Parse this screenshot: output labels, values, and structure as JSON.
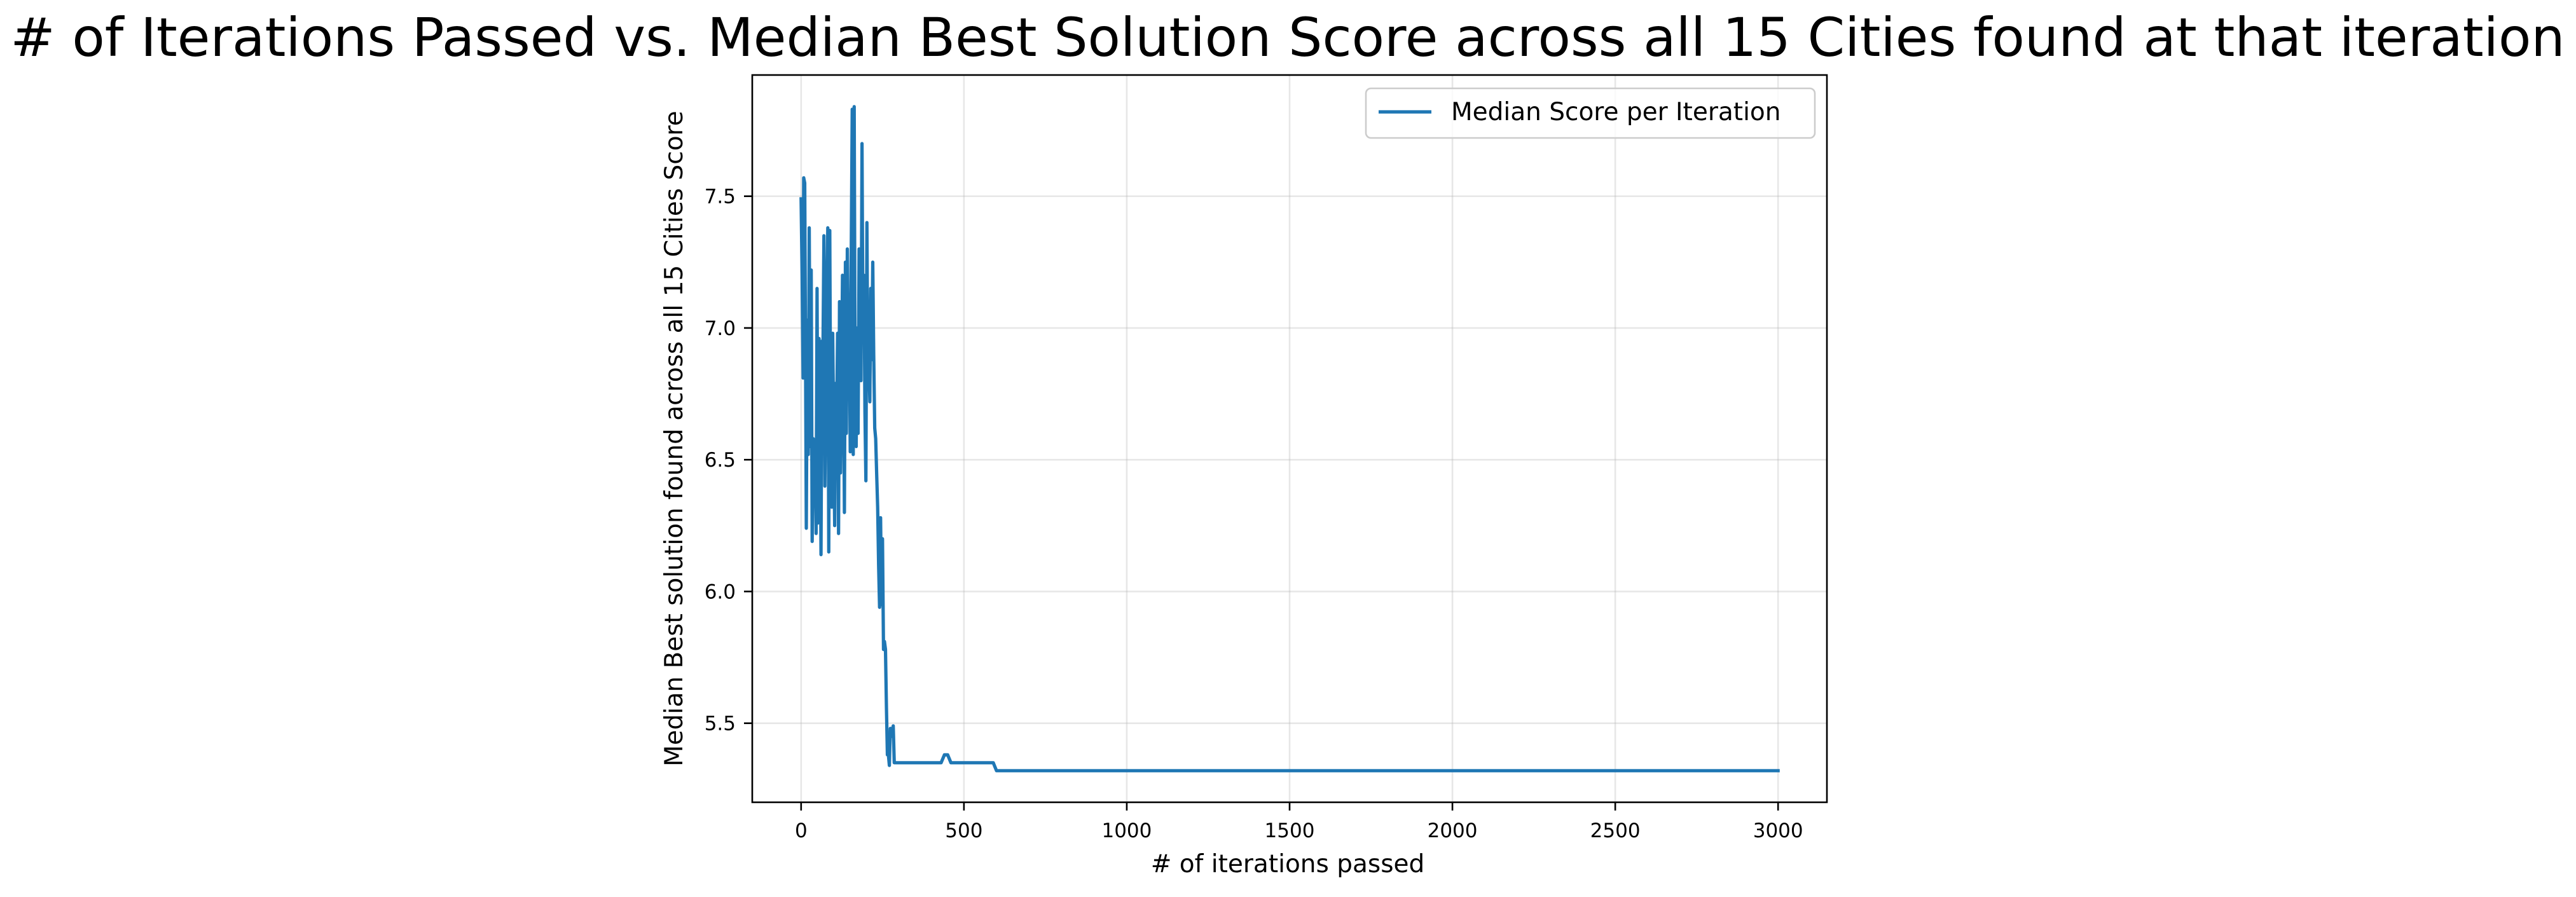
{
  "chart_data": {
    "type": "line",
    "title": "# of Iterations Passed vs. Median Best Solution Score across all 15 Cities found at that iteration",
    "xlabel": "# of iterations passed",
    "ylabel": "Median Best solution found across all 15 Cities Score",
    "xlim": [
      -150,
      3150
    ],
    "ylim": [
      5.2,
      7.96
    ],
    "xticks": [
      0,
      500,
      1000,
      1500,
      2000,
      2500,
      3000
    ],
    "xtick_labels": [
      "0",
      "500",
      "1000",
      "1500",
      "2000",
      "2500",
      "3000"
    ],
    "yticks": [
      5.5,
      6.0,
      6.5,
      7.0,
      7.5
    ],
    "ytick_labels": [
      "5.5",
      "6.0",
      "6.5",
      "7.0",
      "7.5"
    ],
    "grid": true,
    "legend": "upper right",
    "color": "#1f77b4",
    "series": [
      {
        "name": "Median Score per Iteration",
        "x": [
          0,
          3,
          6,
          8,
          11,
          13,
          16,
          19,
          22,
          25,
          28,
          31,
          34,
          37,
          40,
          43,
          46,
          49,
          52,
          55,
          58,
          61,
          64,
          67,
          70,
          73,
          76,
          79,
          82,
          85,
          88,
          91,
          94,
          97,
          100,
          103,
          106,
          109,
          112,
          115,
          118,
          121,
          124,
          127,
          130,
          133,
          136,
          139,
          142,
          145,
          148,
          151,
          154,
          157,
          160,
          163,
          166,
          169,
          172,
          175,
          178,
          181,
          184,
          187,
          190,
          193,
          196,
          199,
          202,
          205,
          208,
          211,
          214,
          217,
          220,
          223,
          226,
          229,
          232,
          235,
          238,
          241,
          244,
          247,
          250,
          253,
          256,
          259,
          262,
          265,
          268,
          271,
          274,
          277,
          280,
          283,
          286,
          289,
          292,
          295,
          298,
          301,
          304,
          307,
          310,
          313,
          316,
          319,
          322,
          325,
          328,
          331,
          334,
          337,
          340,
          343,
          346,
          349,
          352,
          355,
          358,
          362,
          366,
          370,
          375,
          380,
          385,
          390,
          400,
          410,
          420,
          430,
          440,
          450,
          460,
          470,
          480,
          500,
          520,
          540,
          560,
          590,
          600,
          800,
          1000,
          1500,
          2000,
          2500,
          3000
        ],
        "y": [
          7.49,
          7.2,
          6.81,
          7.57,
          7.55,
          7.05,
          6.24,
          7.03,
          6.52,
          7.38,
          6.55,
          7.22,
          6.19,
          6.58,
          6.35,
          6.56,
          6.22,
          7.15,
          6.26,
          6.96,
          6.8,
          6.14,
          6.95,
          6.88,
          7.35,
          6.4,
          6.78,
          7.12,
          7.38,
          6.15,
          7.37,
          6.55,
          6.32,
          6.98,
          6.62,
          6.25,
          6.79,
          6.64,
          6.98,
          6.22,
          7.1,
          6.45,
          6.75,
          7.2,
          6.92,
          6.3,
          7.25,
          6.6,
          7.3,
          6.88,
          7.0,
          6.53,
          7.3,
          7.83,
          6.52,
          7.84,
          6.74,
          6.55,
          7.0,
          6.6,
          7.3,
          6.92,
          6.8,
          7.7,
          6.95,
          7.2,
          6.68,
          6.42,
          7.4,
          6.8,
          6.88,
          6.72,
          7.15,
          6.88,
          7.25,
          6.9,
          6.62,
          6.58,
          6.45,
          6.32,
          6.1,
          5.94,
          6.28,
          5.95,
          6.2,
          5.78,
          5.81,
          5.78,
          5.56,
          5.38,
          5.38,
          5.34,
          5.48,
          5.48,
          5.45,
          5.49,
          5.35,
          5.35,
          5.35,
          5.35,
          5.35,
          5.35,
          5.35,
          5.35,
          5.35,
          5.35,
          5.35,
          5.35,
          5.35,
          5.35,
          5.35,
          5.35,
          5.35,
          5.35,
          5.35,
          5.35,
          5.35,
          5.35,
          5.35,
          5.35,
          5.35,
          5.35,
          5.35,
          5.35,
          5.35,
          5.35,
          5.35,
          5.35,
          5.35,
          5.35,
          5.35,
          5.35,
          5.38,
          5.38,
          5.35,
          5.35,
          5.35,
          5.35,
          5.35,
          5.35,
          5.35,
          5.35,
          5.32,
          5.32,
          5.32,
          5.32,
          5.32,
          5.32,
          5.32
        ]
      }
    ]
  }
}
